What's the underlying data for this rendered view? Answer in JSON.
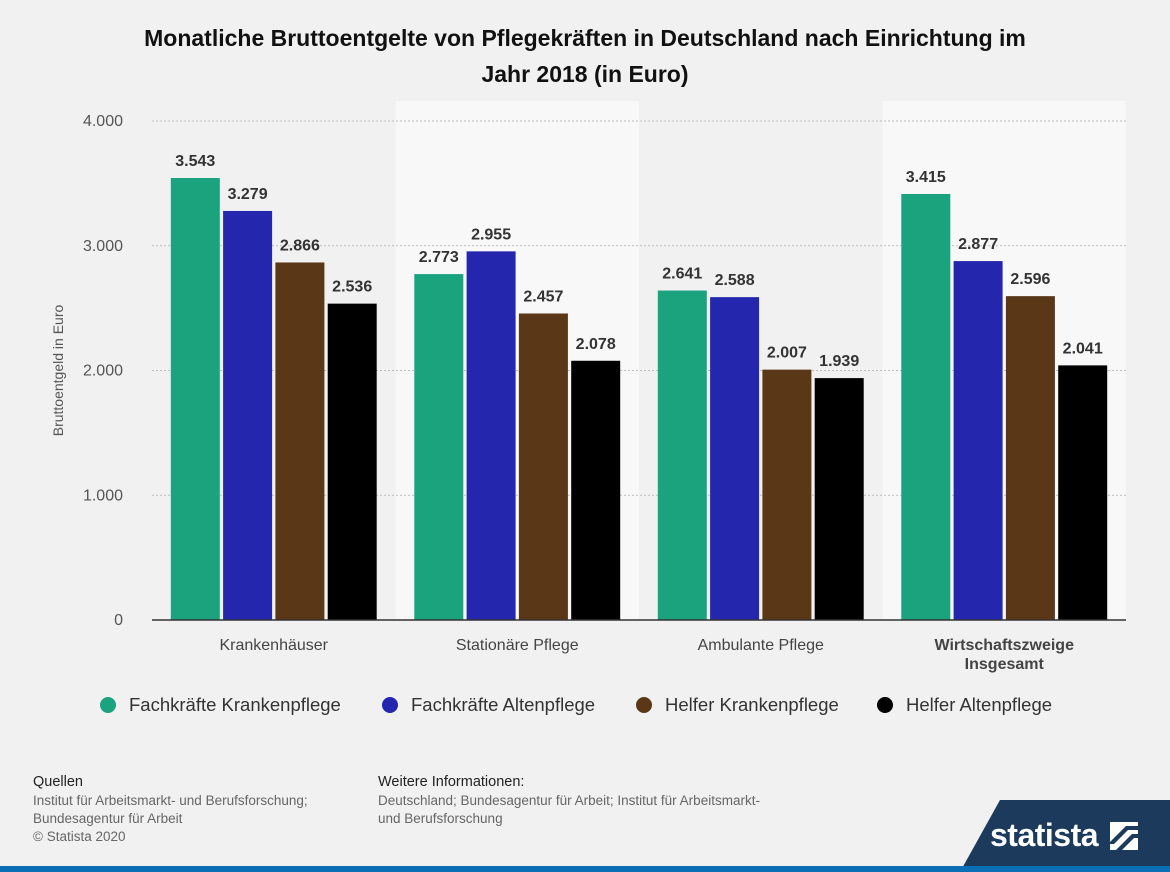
{
  "title_line1": "Monatliche Bruttoentgelte von Pflegekräften in Deutschland nach Einrichtung im",
  "title_line2": "Jahr 2018 (in Euro)",
  "chart_data": {
    "type": "bar",
    "title": "Monatliche Bruttoentgelte von Pflegekräften in Deutschland nach Einrichtung im Jahr 2018 (in Euro)",
    "xlabel": "",
    "ylabel": "Bruttoentgeld in Euro",
    "ylim": [
      0,
      4000
    ],
    "yticks": [
      0,
      1000,
      2000,
      3000,
      4000
    ],
    "ytick_labels": [
      "0",
      "1.000",
      "2.000",
      "3.000",
      "4.000"
    ],
    "categories": [
      "Krankenhäuser",
      "Stationäre Pflege",
      "Ambulante Pflege",
      "Wirtschaftszweige Insgesamt"
    ],
    "category_lines": [
      [
        "Krankenhäuser"
      ],
      [
        "Stationäre Pflege"
      ],
      [
        "Ambulante Pflege"
      ],
      [
        "Wirtschaftszweige",
        "Insgesamt"
      ]
    ],
    "series": [
      {
        "name": "Fachkräfte Krankenpflege",
        "color": "#1aa37c",
        "values": [
          3543,
          2773,
          2641,
          3415
        ],
        "labels": [
          "3.543",
          "2.773",
          "2.641",
          "3.415"
        ]
      },
      {
        "name": "Fachkräfte Altenpflege",
        "color": "#2427ad",
        "values": [
          3279,
          2955,
          2588,
          2877
        ],
        "labels": [
          "3.279",
          "2.955",
          "2.588",
          "2.877"
        ]
      },
      {
        "name": "Helfer Krankenpflege",
        "color": "#5a3716",
        "values": [
          2866,
          2457,
          2007,
          2596
        ],
        "labels": [
          "2.866",
          "2.457",
          "2.007",
          "2.596"
        ]
      },
      {
        "name": "Helfer Altenpflege",
        "color": "#000000",
        "values": [
          2536,
          2078,
          1939,
          2041
        ],
        "labels": [
          "2.536",
          "2.078",
          "1.939",
          "2.041"
        ]
      }
    ],
    "grid": true,
    "legend_position": "bottom"
  },
  "footer": {
    "sources_heading": "Quellen",
    "sources_line1": "Institut für Arbeitsmarkt- und Berufsforschung;",
    "sources_line2": "Bundesagentur für Arbeit",
    "copyright": "© Statista 2020",
    "info_heading": "Weitere Informationen:",
    "info_line1": "Deutschland; Bundesagentur für Arbeit; Institut für Arbeitsmarkt-",
    "info_line2": "und Berufsforschung"
  },
  "brand": {
    "name": "statista",
    "background_color": "#1b3a5c",
    "bar_color": "#0a6fb5"
  }
}
